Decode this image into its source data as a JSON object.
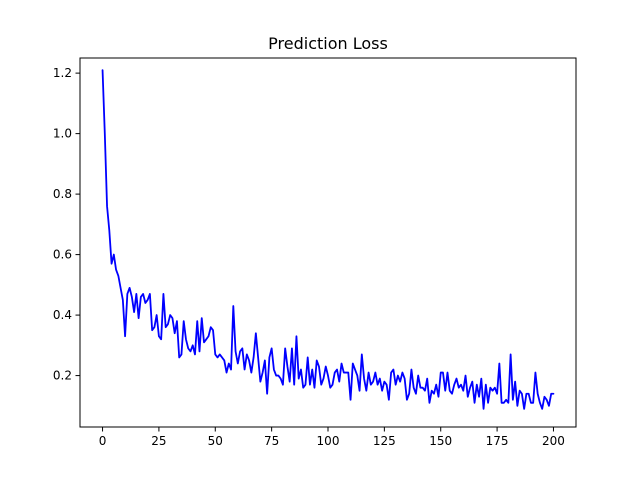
{
  "chart_data": {
    "type": "line",
    "title": "Prediction Loss",
    "xlabel": "",
    "ylabel": "",
    "xlim": [
      -10,
      210
    ],
    "ylim": [
      0.03,
      1.25
    ],
    "xticks": [
      0,
      25,
      50,
      75,
      100,
      125,
      150,
      175,
      200
    ],
    "yticks": [
      0.2,
      0.4,
      0.6,
      0.8,
      1.0,
      1.2
    ],
    "xtick_labels": [
      "0",
      "25",
      "50",
      "75",
      "100",
      "125",
      "150",
      "175",
      "200"
    ],
    "ytick_labels": [
      "0.2",
      "0.4",
      "0.6",
      "0.8",
      "1.0",
      "1.2"
    ],
    "grid": false,
    "series": [
      {
        "color": "#0000ff",
        "values": [
          1.21,
          1.0,
          0.76,
          0.68,
          0.57,
          0.6,
          0.55,
          0.53,
          0.49,
          0.45,
          0.33,
          0.47,
          0.49,
          0.46,
          0.41,
          0.47,
          0.39,
          0.46,
          0.47,
          0.44,
          0.45,
          0.47,
          0.35,
          0.36,
          0.4,
          0.33,
          0.32,
          0.47,
          0.36,
          0.37,
          0.4,
          0.39,
          0.34,
          0.38,
          0.26,
          0.27,
          0.38,
          0.32,
          0.29,
          0.28,
          0.3,
          0.27,
          0.38,
          0.28,
          0.39,
          0.31,
          0.32,
          0.33,
          0.36,
          0.35,
          0.27,
          0.26,
          0.27,
          0.26,
          0.25,
          0.21,
          0.24,
          0.22,
          0.43,
          0.28,
          0.24,
          0.28,
          0.29,
          0.22,
          0.27,
          0.25,
          0.21,
          0.26,
          0.34,
          0.26,
          0.18,
          0.21,
          0.25,
          0.14,
          0.26,
          0.29,
          0.22,
          0.2,
          0.2,
          0.19,
          0.17,
          0.29,
          0.23,
          0.18,
          0.29,
          0.17,
          0.33,
          0.19,
          0.22,
          0.16,
          0.17,
          0.26,
          0.17,
          0.22,
          0.16,
          0.25,
          0.23,
          0.17,
          0.19,
          0.23,
          0.2,
          0.16,
          0.17,
          0.21,
          0.22,
          0.18,
          0.24,
          0.21,
          0.21,
          0.21,
          0.12,
          0.24,
          0.22,
          0.2,
          0.15,
          0.27,
          0.19,
          0.15,
          0.21,
          0.17,
          0.18,
          0.21,
          0.17,
          0.19,
          0.15,
          0.18,
          0.17,
          0.12,
          0.21,
          0.22,
          0.17,
          0.2,
          0.18,
          0.21,
          0.19,
          0.12,
          0.14,
          0.22,
          0.16,
          0.14,
          0.2,
          0.16,
          0.16,
          0.15,
          0.19,
          0.11,
          0.15,
          0.14,
          0.17,
          0.13,
          0.21,
          0.21,
          0.15,
          0.21,
          0.15,
          0.14,
          0.17,
          0.19,
          0.16,
          0.17,
          0.15,
          0.2,
          0.13,
          0.16,
          0.18,
          0.11,
          0.17,
          0.13,
          0.19,
          0.09,
          0.17,
          0.11,
          0.16,
          0.15,
          0.16,
          0.14,
          0.24,
          0.11,
          0.11,
          0.12,
          0.11,
          0.27,
          0.12,
          0.18,
          0.1,
          0.15,
          0.14,
          0.09,
          0.14,
          0.14,
          0.11,
          0.11,
          0.21,
          0.14,
          0.11,
          0.09,
          0.13,
          0.12,
          0.1,
          0.14,
          0.14
        ]
      }
    ]
  }
}
